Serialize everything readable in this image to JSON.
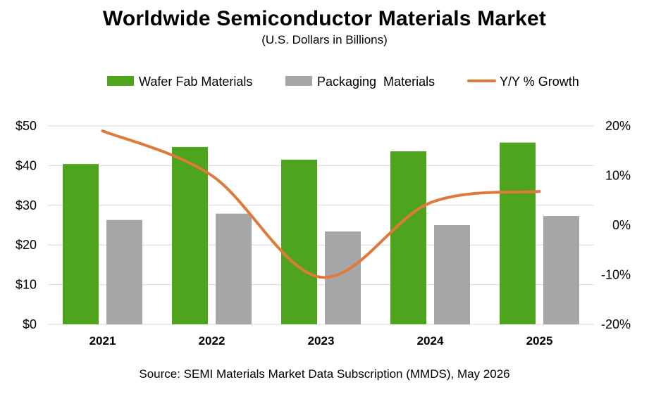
{
  "title": "Worldwide Semiconductor Materials Market",
  "subtitle": "(U.S. Dollars in Billions)",
  "source": "Source:  SEMI Materials Market Data Subscription (MMDS), May 2026",
  "colors": {
    "wafer": "#4fa41d",
    "packaging": "#a6a6a6",
    "growth": "#e07a3a",
    "grid": "#d9d9d9"
  },
  "chart_data": {
    "type": "bar",
    "categories": [
      "2021",
      "2022",
      "2023",
      "2024",
      "2025"
    ],
    "series": [
      {
        "name": "Wafer Fab Materials",
        "type": "bar",
        "axis": "left",
        "values": [
          40.4,
          44.7,
          41.5,
          43.6,
          45.8
        ]
      },
      {
        "name": "Packaging  Materials",
        "type": "bar",
        "axis": "left",
        "values": [
          26.3,
          27.9,
          23.4,
          25.0,
          27.3
        ]
      },
      {
        "name": "Y/Y % Growth",
        "type": "line",
        "axis": "right",
        "values": [
          19.0,
          10.0,
          -10.5,
          4.5,
          6.8
        ]
      }
    ],
    "left_axis": {
      "ylim": [
        0,
        50
      ],
      "ticks": [
        "$0",
        "$10",
        "$20",
        "$30",
        "$40",
        "$50"
      ]
    },
    "right_axis": {
      "ylim": [
        -20,
        20
      ],
      "ticks": [
        "-20%",
        "-10%",
        "0%",
        "10%",
        "20%"
      ]
    },
    "grid": true,
    "legend_position": "top"
  }
}
